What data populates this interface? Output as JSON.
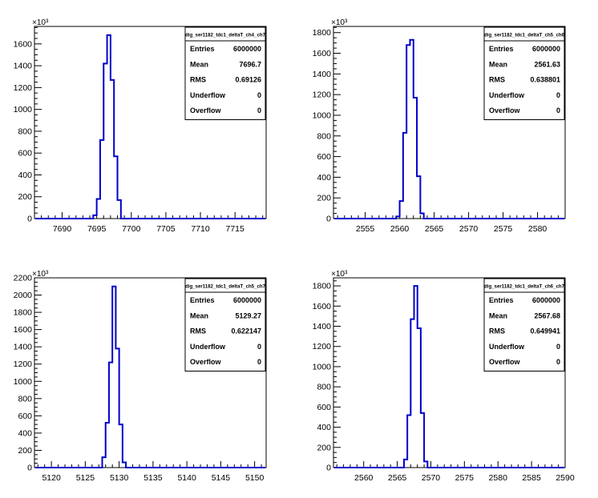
{
  "chart_data": [
    {
      "type": "histogram",
      "exponent_label": "×10³",
      "stats": {
        "title": "dig_ser1182_tdc1_deltaT_ch4_ch7",
        "rows": [
          {
            "label": "Entries",
            "value": "6000000"
          },
          {
            "label": "Mean",
            "value": "7696.7"
          },
          {
            "label": "RMS",
            "value": "0.69126"
          },
          {
            "label": "Underflow",
            "value": "0"
          },
          {
            "label": "Overflow",
            "value": "0"
          }
        ]
      },
      "xlim": [
        7686,
        7719.5
      ],
      "ylim": [
        0,
        1760
      ],
      "xticks": [
        7690,
        7695,
        7700,
        7705,
        7710,
        7715
      ],
      "yticks": [
        0,
        200,
        400,
        600,
        800,
        1000,
        1200,
        1400,
        1600
      ],
      "ytick_labels": [
        "0",
        "200",
        "400",
        "600",
        "800",
        "1000",
        "1200",
        "1400",
        "1600"
      ],
      "bin_width": 0.5,
      "bin_edges": [
        7694.5,
        7695.0,
        7695.5,
        7696.0,
        7696.5,
        7697.0,
        7697.5,
        7698.0
      ],
      "values": [
        30,
        180,
        720,
        1420,
        1680,
        1270,
        570,
        170
      ]
    },
    {
      "type": "histogram",
      "exponent_label": "×10³",
      "stats": {
        "title": "dig_ser1182_tdc1_deltaT_ch5_ch6",
        "rows": [
          {
            "label": "Entries",
            "value": "6000000"
          },
          {
            "label": "Mean",
            "value": "2561.63"
          },
          {
            "label": "RMS",
            "value": "0.638801"
          },
          {
            "label": "Underflow",
            "value": "0"
          },
          {
            "label": "Overflow",
            "value": "0"
          }
        ]
      },
      "xlim": [
        2550.4,
        2584
      ],
      "ylim": [
        0,
        1860
      ],
      "xticks": [
        2555,
        2560,
        2565,
        2570,
        2575,
        2580
      ],
      "yticks": [
        0,
        200,
        400,
        600,
        800,
        1000,
        1200,
        1400,
        1600,
        1800
      ],
      "ytick_labels": [
        "0",
        "200",
        "400",
        "600",
        "800",
        "1000",
        "1200",
        "1400",
        "1600",
        "1800"
      ],
      "bin_width": 0.5,
      "bin_edges": [
        2559.5,
        2560.0,
        2560.5,
        2561.0,
        2561.5,
        2562.0,
        2562.5,
        2563.0
      ],
      "values": [
        20,
        170,
        830,
        1680,
        1730,
        1170,
        410,
        50
      ]
    },
    {
      "type": "histogram",
      "exponent_label": "×10³",
      "stats": {
        "title": "dig_ser1182_tdc1_deltaT_ch5_ch7",
        "rows": [
          {
            "label": "Entries",
            "value": "6000000"
          },
          {
            "label": "Mean",
            "value": "5129.27"
          },
          {
            "label": "RMS",
            "value": "0.622147"
          },
          {
            "label": "Underflow",
            "value": "0"
          },
          {
            "label": "Overflow",
            "value": "0"
          }
        ]
      },
      "xlim": [
        5117.5,
        5151.7
      ],
      "ylim": [
        0,
        2200
      ],
      "xticks": [
        5120,
        5125,
        5130,
        5135,
        5140,
        5145,
        5150
      ],
      "yticks": [
        0,
        200,
        400,
        600,
        800,
        1000,
        1200,
        1400,
        1600,
        1800,
        2000,
        2200
      ],
      "ytick_labels": [
        "0",
        "200",
        "400",
        "600",
        "800",
        "1000",
        "1200",
        "1400",
        "1600",
        "1800",
        "2000",
        "2200"
      ],
      "bin_width": 0.5,
      "bin_edges": [
        5127.5,
        5128.0,
        5128.5,
        5129.0,
        5129.5,
        5130.0,
        5130.5,
        5131.0
      ],
      "values": [
        120,
        520,
        1220,
        2100,
        1380,
        500,
        60
      ]
    },
    {
      "type": "histogram",
      "exponent_label": "×10³",
      "stats": {
        "title": "dig_ser1182_tdc1_deltaT_ch6_ch7",
        "rows": [
          {
            "label": "Entries",
            "value": "6000000"
          },
          {
            "label": "Mean",
            "value": "2567.68"
          },
          {
            "label": "RMS",
            "value": "0.649941"
          },
          {
            "label": "Underflow",
            "value": "0"
          },
          {
            "label": "Overflow",
            "value": "0"
          }
        ]
      },
      "xlim": [
        2555.5,
        2590
      ],
      "ylim": [
        0,
        1880
      ],
      "xticks": [
        2560,
        2565,
        2570,
        2575,
        2580,
        2585,
        2590
      ],
      "yticks": [
        0,
        200,
        400,
        600,
        800,
        1000,
        1200,
        1400,
        1600,
        1800
      ],
      "ytick_labels": [
        "0",
        "200",
        "400",
        "600",
        "800",
        "1000",
        "1200",
        "1400",
        "1600",
        "1800"
      ],
      "bin_width": 0.5,
      "bin_edges": [
        2566.0,
        2566.5,
        2567.0,
        2567.5,
        2568.0,
        2568.5,
        2569.0,
        2569.5
      ],
      "values": [
        80,
        520,
        1470,
        1800,
        1380,
        540,
        60
      ]
    }
  ],
  "colors": {
    "series": "#0000cc",
    "axis": "#000000",
    "background": "#ffffff"
  }
}
